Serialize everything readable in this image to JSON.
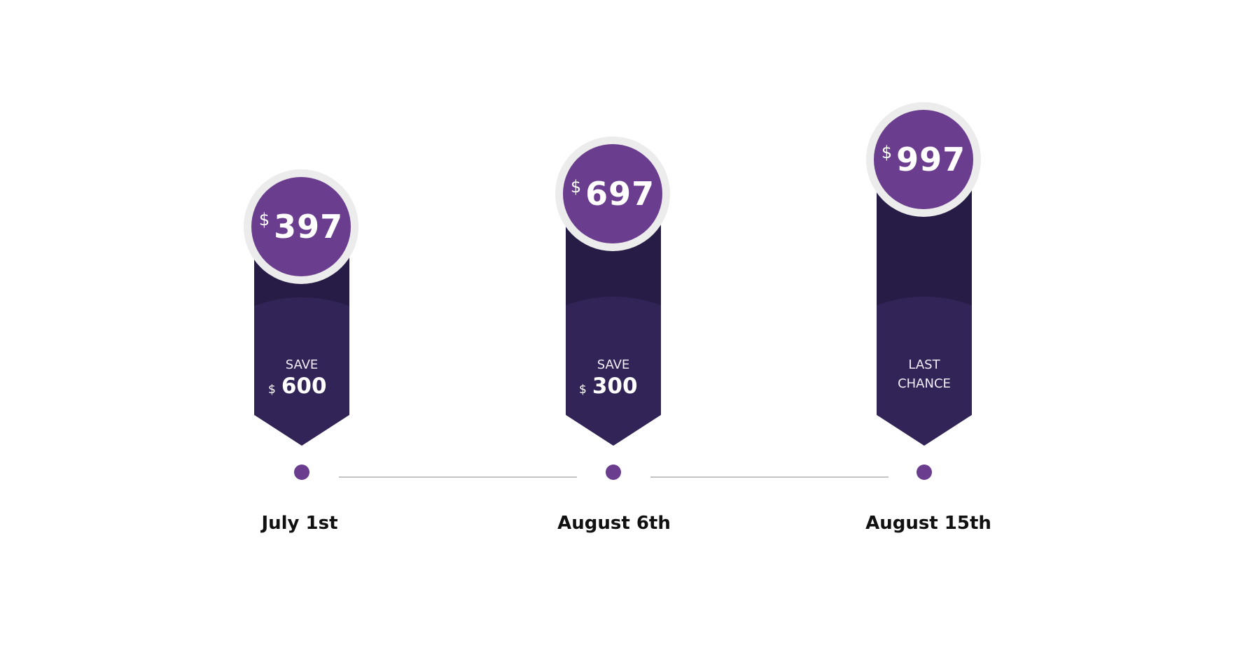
{
  "tiers": [
    {
      "price_currency": "$",
      "price": "397",
      "label": "SAVE",
      "save_currency": "$",
      "save_amount": "600",
      "date": "July 1st"
    },
    {
      "price_currency": "$",
      "price": "697",
      "label": "SAVE",
      "save_currency": "$",
      "save_amount": "300",
      "date": "August 6th"
    },
    {
      "price_currency": "$",
      "price": "997",
      "label_line1": "LAST",
      "label_line2": "CHANCE",
      "date": "August 15th"
    }
  ],
  "colors": {
    "badge": "#6a3d8e",
    "banner": "#322456",
    "banner_dark": "#261c46",
    "ring": "#ececec",
    "line": "#c4c4c4"
  }
}
